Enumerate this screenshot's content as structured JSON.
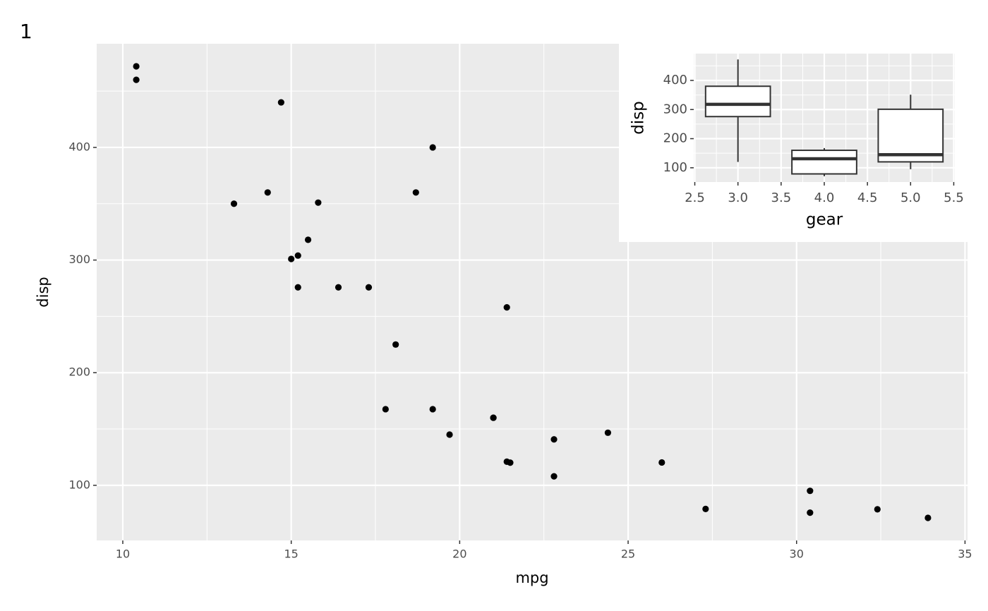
{
  "chart_data": [
    {
      "type": "scatter",
      "tag": "1",
      "x_label": "mpg",
      "y_label": "disp",
      "x": [
        21.0,
        21.0,
        22.8,
        21.4,
        18.7,
        18.1,
        14.3,
        24.4,
        22.8,
        19.2,
        17.8,
        16.4,
        17.3,
        15.2,
        10.4,
        10.4,
        14.7,
        32.4,
        30.4,
        33.9,
        21.5,
        15.5,
        15.2,
        13.3,
        19.2,
        27.3,
        26.0,
        30.4,
        15.8,
        19.7,
        15.0,
        21.4
      ],
      "values": [
        160,
        160,
        108,
        258,
        360,
        225,
        360,
        146.7,
        140.8,
        167.6,
        167.6,
        275.8,
        275.8,
        275.8,
        472,
        460,
        440,
        78.7,
        75.7,
        71.1,
        120.1,
        318,
        304,
        350,
        400,
        79,
        120.3,
        95.1,
        351,
        145,
        301,
        121
      ],
      "color": "#000000",
      "xlim": [
        9.225,
        35.075
      ],
      "xticks": [
        10,
        15,
        20,
        25,
        30,
        35
      ],
      "x_minor_ticks": [
        12.5,
        17.5,
        22.5,
        27.5,
        32.5
      ],
      "ylim": [
        51.055,
        492.045
      ],
      "yticks": [
        100,
        200,
        300,
        400
      ],
      "y_minor_ticks": [
        150,
        250,
        350,
        450
      ],
      "grid": true
    },
    {
      "type": "box",
      "x_label": "gear",
      "y_label": "disp",
      "x": [
        3,
        4,
        5
      ],
      "min": [
        120.1,
        71.1,
        95.1
      ],
      "q1": [
        275.8,
        78.925,
        120.3
      ],
      "median": [
        318,
        130.9,
        145
      ],
      "q3": [
        380,
        160,
        301
      ],
      "max": [
        472,
        167.6,
        351
      ],
      "xlim": [
        2.4875,
        5.5125
      ],
      "xticks": [
        2.5,
        3.0,
        3.5,
        4.0,
        4.5,
        5.0,
        5.5
      ],
      "x_minor_ticks": [
        2.75,
        3.25,
        3.75,
        4.25,
        4.75,
        5.25
      ],
      "ylim": [
        51.055,
        492.045
      ],
      "yticks": [
        100,
        200,
        300,
        400
      ],
      "y_minor_ticks": [
        150,
        250,
        350,
        450
      ],
      "grid": true
    }
  ]
}
